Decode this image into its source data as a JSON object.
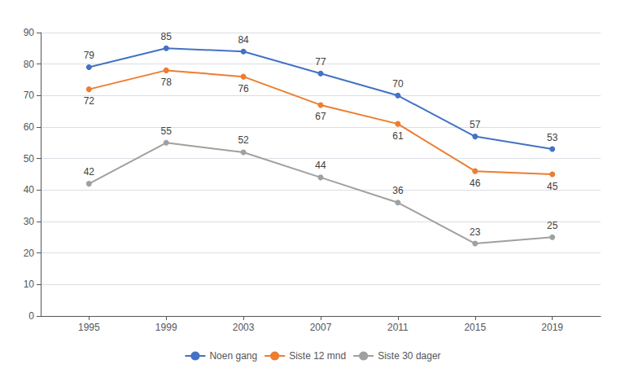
{
  "chart_data": {
    "type": "line",
    "x": [
      1995,
      1999,
      2003,
      2007,
      2011,
      2015,
      2019
    ],
    "xlim": [
      1992.5,
      2021.5
    ],
    "xticks": [
      1995,
      1999,
      2003,
      2007,
      2011,
      2015,
      2019
    ],
    "ylim": [
      0,
      90
    ],
    "yticks": [
      0,
      10,
      20,
      30,
      40,
      50,
      60,
      70,
      80,
      90
    ],
    "grid": true,
    "legend": "bottom",
    "data_labels": true,
    "marker": "circle",
    "series": [
      {
        "name": "Noen gang",
        "color": "#4472C4",
        "values": [
          79,
          85,
          84,
          77,
          70,
          57,
          53
        ]
      },
      {
        "name": "Siste 12 mnd",
        "color": "#ED7D31",
        "values": [
          72,
          78,
          76,
          67,
          61,
          46,
          45
        ]
      },
      {
        "name": "Siste 30 dager",
        "color": "#A0A0A0",
        "values": [
          42,
          55,
          52,
          44,
          36,
          23,
          25
        ]
      }
    ]
  }
}
